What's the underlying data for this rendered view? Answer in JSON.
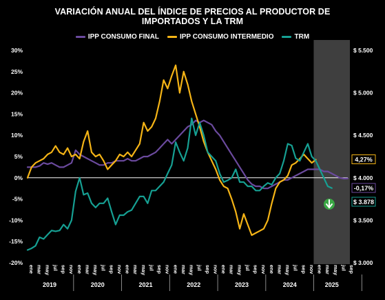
{
  "title_line1": "VARIACIÓN ANUAL DEL ÍNDICE DE PRECIOS AL PRODUCTOR DE",
  "title_line2": "IMPORTADOS Y LA TRM",
  "legend": [
    {
      "label": "IPP CONSUMO FINAL",
      "color": "#6b4a9e"
    },
    {
      "label": "IPP CONSUMO INTERMEDIO",
      "color": "#f5b416"
    },
    {
      "label": "TRM",
      "color": "#16a093"
    }
  ],
  "end_labels": {
    "intermedio": "4,27%",
    "final": "-0,17%",
    "trm": "$ 3.878"
  },
  "chart_data": {
    "type": "line",
    "y_left_ticks": [
      "30%",
      "25%",
      "20%",
      "15%",
      "10%",
      "5%",
      "0%",
      "-5%",
      "-10%",
      "-15%",
      "-20%"
    ],
    "y_left_range": [
      -20,
      30
    ],
    "y_right_ticks": [
      "$ 5.500",
      "$ 5.000",
      "$ 4.500",
      "$ 4.000",
      "$ 3.500",
      "$ 3.000"
    ],
    "y_right_range": [
      3000,
      5500
    ],
    "month_ticks": [
      "ene",
      "mar",
      "may",
      "jul",
      "sep",
      "nov"
    ],
    "years": [
      "2019",
      "2020",
      "2021",
      "2022",
      "2023",
      "2024",
      "2025"
    ],
    "highlight_months": [
      72,
      80
    ],
    "series": [
      {
        "name": "IPP CONSUMO FINAL",
        "color": "#6b4a9e",
        "unit": "%",
        "values": [
          2.5,
          2.5,
          2.5,
          2.8,
          3.5,
          3.2,
          3.5,
          3.0,
          2.5,
          2.5,
          3.0,
          3.5,
          6.5,
          5.5,
          5.0,
          4.5,
          4.0,
          3.5,
          3.0,
          3.0,
          3.5,
          3.5,
          4.0,
          4.0,
          4.0,
          4.5,
          4.0,
          4.0,
          4.5,
          5.0,
          5.0,
          5.5,
          6.0,
          7.0,
          8.0,
          9.0,
          8.0,
          9.0,
          10.0,
          11.0,
          12.0,
          12.5,
          13.5,
          13.0,
          13.5,
          13.0,
          12.5,
          11.0,
          10.0,
          8.5,
          7.0,
          5.5,
          4.0,
          2.5,
          1.0,
          -0.5,
          -1.5,
          -2.0,
          -2.0,
          -2.5,
          -2.5,
          -2.0,
          -1.5,
          -1.0,
          -0.5,
          -0.5,
          0.0,
          0.5,
          1.0,
          1.5,
          2.0,
          2.0,
          2.0,
          2.0,
          1.5,
          1.5,
          1.0,
          0.5,
          0.0,
          -0.2,
          -0.17
        ]
      },
      {
        "name": "IPP CONSUMO INTERMEDIO",
        "color": "#f5b416",
        "unit": "%",
        "values": [
          0.0,
          2.5,
          3.5,
          4.0,
          4.5,
          5.5,
          6.0,
          7.5,
          6.0,
          5.5,
          7.0,
          5.0,
          5.5,
          4.5,
          8.5,
          11.0,
          6.0,
          5.0,
          5.5,
          4.0,
          2.0,
          3.0,
          4.0,
          5.5,
          5.0,
          6.0,
          5.0,
          6.5,
          8.0,
          13.0,
          11.0,
          12.0,
          14.0,
          18.0,
          23.0,
          21.0,
          24.0,
          26.5,
          20.0,
          25.0,
          22.0,
          18.0,
          15.0,
          12.0,
          8.5,
          6.0,
          4.0,
          2.0,
          -0.5,
          -2.0,
          -2.5,
          -5.0,
          -8.0,
          -12.0,
          -8.5,
          -11.0,
          -13.5,
          -13.0,
          -12.5,
          -12.0,
          -10.0,
          -6.0,
          -2.5,
          -1.0,
          -0.5,
          0.5,
          3.0,
          3.5,
          4.5,
          5.5,
          4.5,
          3.5,
          4.27
        ]
      },
      {
        "name": "TRM",
        "color": "#16a093",
        "unit": "COP",
        "values": [
          3150,
          3170,
          3200,
          3300,
          3280,
          3330,
          3380,
          3370,
          3380,
          3450,
          3400,
          3500,
          3840,
          4000,
          3800,
          3820,
          3700,
          3650,
          3700,
          3700,
          3760,
          3600,
          3450,
          3560,
          3560,
          3600,
          3620,
          3700,
          3780,
          3780,
          3700,
          3850,
          3850,
          3900,
          3950,
          4050,
          4150,
          4420,
          4300,
          4200,
          4350,
          4700,
          4500,
          4650,
          4500,
          4300,
          4250,
          4200,
          4050,
          3950,
          3970,
          4000,
          4100,
          3950,
          3950,
          3900,
          3900,
          3850,
          3850,
          3900,
          3940,
          3920,
          4000,
          4050,
          4200,
          4400,
          4380,
          4230,
          4200,
          4300,
          4400,
          4250,
          4200,
          4100,
          4000,
          3900,
          3878
        ]
      }
    ]
  }
}
